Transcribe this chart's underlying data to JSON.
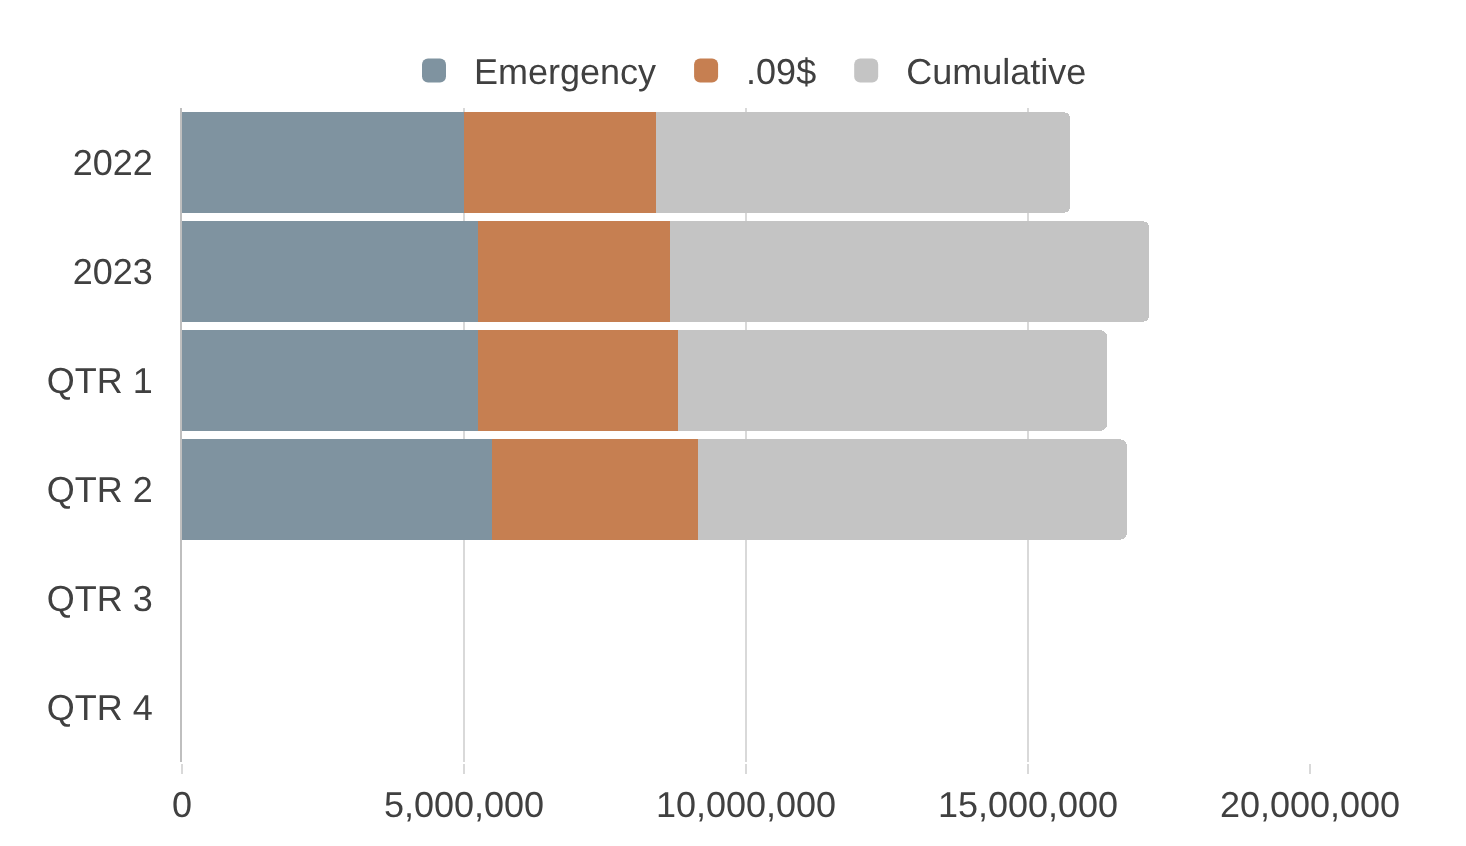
{
  "chart_data": {
    "type": "bar",
    "orientation": "horizontal",
    "stacked": true,
    "categories": [
      "2022",
      "2023",
      "QTR 1",
      "QTR 2",
      "QTR 3",
      "QTR 4"
    ],
    "series": [
      {
        "name": "Emergency",
        "color": "#7f93a0",
        "values": [
          5000000,
          5250000,
          5250000,
          5500000,
          null,
          null
        ]
      },
      {
        "name": ".09$",
        "color": "#c67f51",
        "values": [
          3400000,
          3400000,
          3550000,
          3650000,
          null,
          null
        ]
      },
      {
        "name": "Cumulative",
        "color": "#c4c4c4",
        "values": [
          7350000,
          8500000,
          7600000,
          7600000,
          null,
          null
        ]
      }
    ],
    "xlim": [
      0,
      20000000
    ],
    "xticks": [
      0,
      {
        "value": 5000000,
        "label": "5,000,000"
      },
      {
        "value": 10000000,
        "label": "10,000,000"
      },
      {
        "value": 15000000,
        "label": "15,000,000"
      },
      {
        "value": 20000000,
        "label": "20,000,000"
      }
    ],
    "grid": "x",
    "legend": "top"
  }
}
